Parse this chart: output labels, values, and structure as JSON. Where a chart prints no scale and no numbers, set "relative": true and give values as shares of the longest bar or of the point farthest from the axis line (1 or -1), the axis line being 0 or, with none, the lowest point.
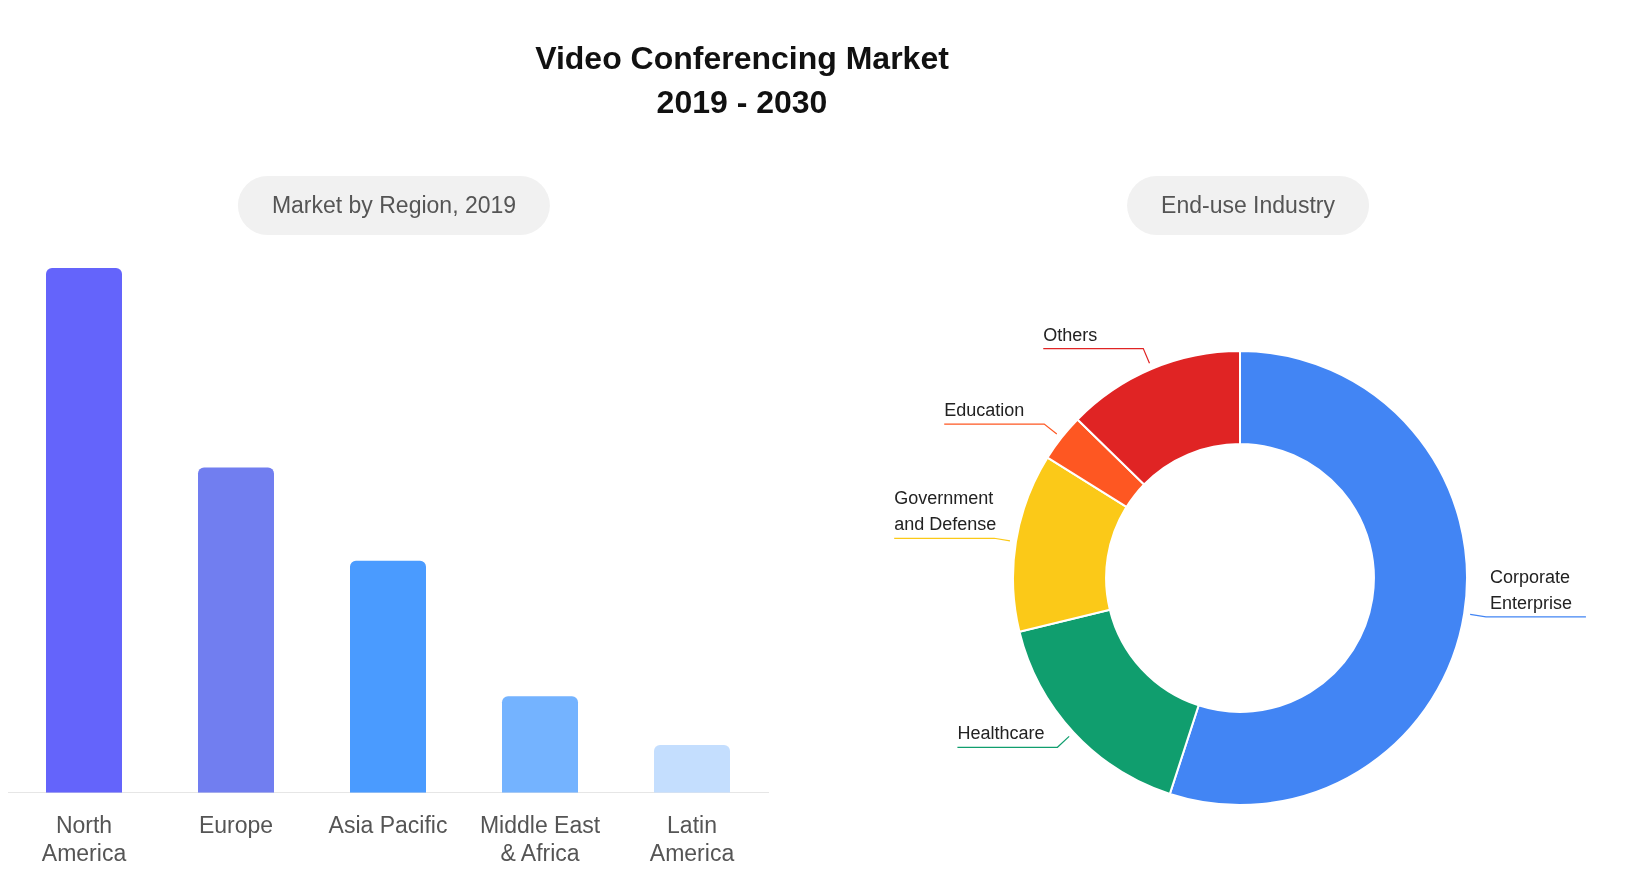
{
  "chart_data": [
    {
      "type": "bar",
      "title": "Video Conferencing Market\n2019 - 2030",
      "subtitle": "Market by Region, 2019",
      "relative": true,
      "legend": false,
      "grid": false,
      "categories": [
        "North America",
        "Europe",
        "Asia Pacific",
        "Middle East & Africa",
        "Latin America"
      ],
      "values": [
        1,
        0.62,
        0.442,
        0.184,
        0.091
      ],
      "colors": [
        "#6464fb",
        "#717ef0",
        "#4a9bff",
        "#74b3ff",
        "#c4defe"
      ]
    },
    {
      "type": "donut",
      "subtitle": "End-use Industry",
      "legend": false,
      "categories": [
        "Corporate Enterprise",
        "Healthcare",
        "Government and Defense",
        "Education",
        "Others"
      ],
      "values": [
        55.0,
        16.2,
        12.7,
        3.4,
        12.7
      ],
      "colors": [
        "#4285f4",
        "#109e6e",
        "#fbc918",
        "#fe5722",
        "#e02424"
      ]
    }
  ]
}
